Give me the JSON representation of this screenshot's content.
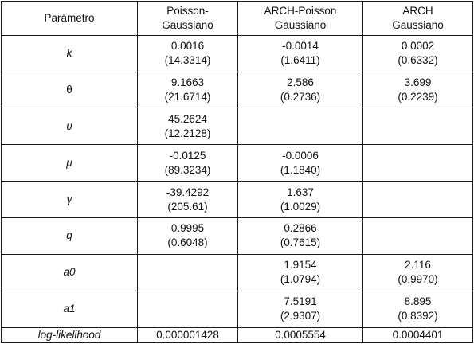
{
  "table": {
    "headers": [
      {
        "line1": "Parámetro",
        "line2": ""
      },
      {
        "line1": "Poisson-",
        "line2": "Gaussiano"
      },
      {
        "line1": "ARCH-Poisson",
        "line2": "Gaussiano"
      },
      {
        "line1": "ARCH",
        "line2": "Gaussiano"
      }
    ],
    "rows": [
      {
        "param": "k",
        "cells": [
          {
            "value": "0.0016",
            "se": "(14.3314)"
          },
          {
            "value": "-0.0014",
            "se": "(1.6411)"
          },
          {
            "value": "0.0002",
            "se": "(0.6332)"
          }
        ]
      },
      {
        "param": "θ",
        "cells": [
          {
            "value": "9.1663",
            "se": "(21.6714)"
          },
          {
            "value": "2.586",
            "se": "(0.2736)"
          },
          {
            "value": "3.699",
            "se": "(0.2239)"
          }
        ]
      },
      {
        "param": "υ",
        "cells": [
          {
            "value": "45.2624",
            "se": "(12.2128)"
          },
          {
            "value": "",
            "se": ""
          },
          {
            "value": "",
            "se": ""
          }
        ]
      },
      {
        "param": "μ",
        "cells": [
          {
            "value": "-0.0125",
            "se": "(89.3234)"
          },
          {
            "value": "-0.0006",
            "se": "(1.1840)"
          },
          {
            "value": "",
            "se": ""
          }
        ]
      },
      {
        "param": "γ",
        "cells": [
          {
            "value": "-39.4292",
            "se": "(205.61)"
          },
          {
            "value": "1.637",
            "se": "(1.0029)"
          },
          {
            "value": "",
            "se": ""
          }
        ]
      },
      {
        "param": "q",
        "cells": [
          {
            "value": "0.9995",
            "se": "(0.6048)"
          },
          {
            "value": "0.2866",
            "se": "(0.7615)"
          },
          {
            "value": "",
            "se": ""
          }
        ]
      },
      {
        "param": "a0",
        "cells": [
          {
            "value": "",
            "se": ""
          },
          {
            "value": "1.9154",
            "se": "(1.0794)"
          },
          {
            "value": "2.116",
            "se": "(0.9970)"
          }
        ]
      },
      {
        "param": "a1",
        "cells": [
          {
            "value": "",
            "se": ""
          },
          {
            "value": "7.5191",
            "se": "(2.9307)"
          },
          {
            "value": "8.895",
            "se": "(0.8392)"
          }
        ]
      }
    ],
    "footer": {
      "param": "log-likelihood",
      "values": [
        "0.000001428",
        "0.0005554",
        "0.0004401"
      ]
    }
  }
}
